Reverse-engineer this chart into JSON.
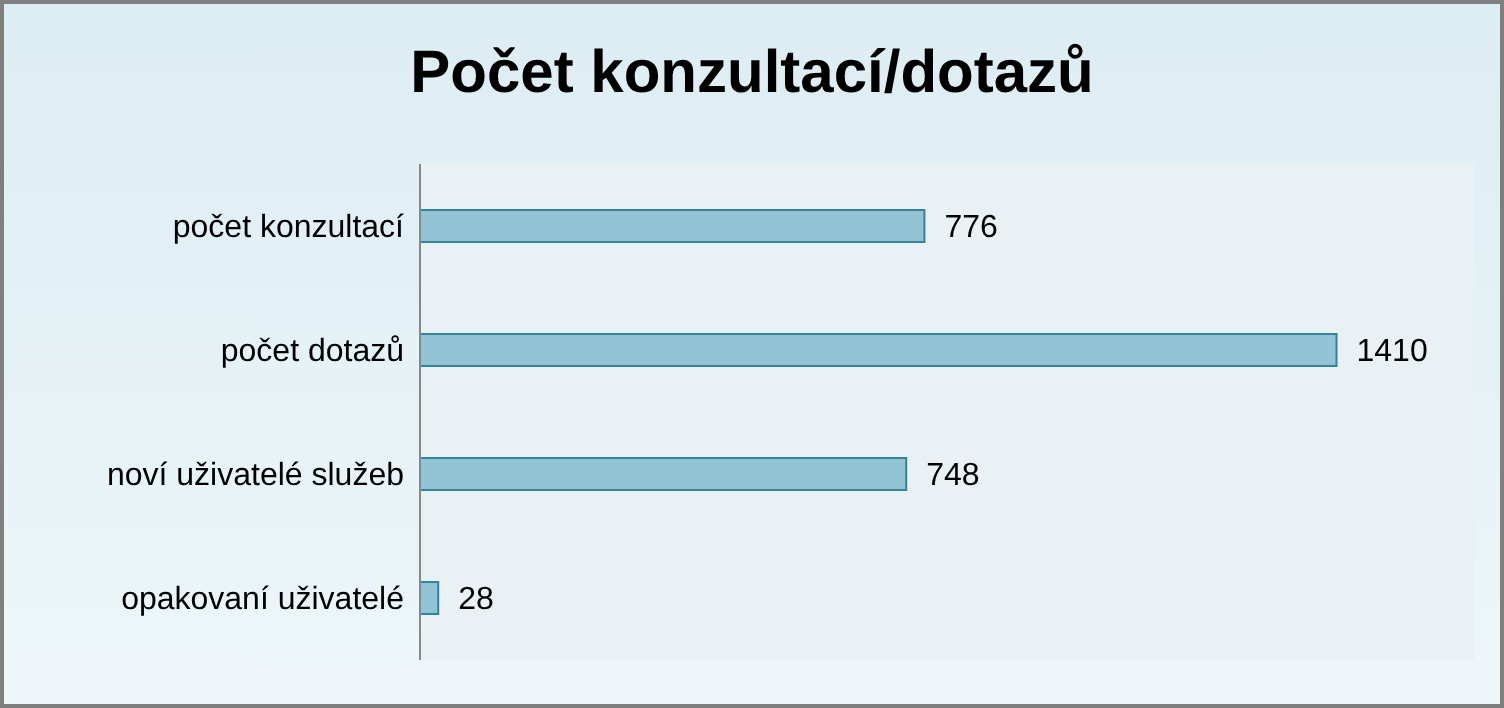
{
  "chart_data": {
    "type": "bar",
    "orientation": "horizontal",
    "title": "Počet konzultací/dotazů",
    "categories": [
      "počet konzultací",
      "počet dotazů",
      "noví uživatelé služeb",
      "opakovaní uživatelé"
    ],
    "values": [
      776,
      1410,
      748,
      28
    ],
    "color": "#93c4d6",
    "data_labels": true,
    "grid": false,
    "legend": false
  }
}
